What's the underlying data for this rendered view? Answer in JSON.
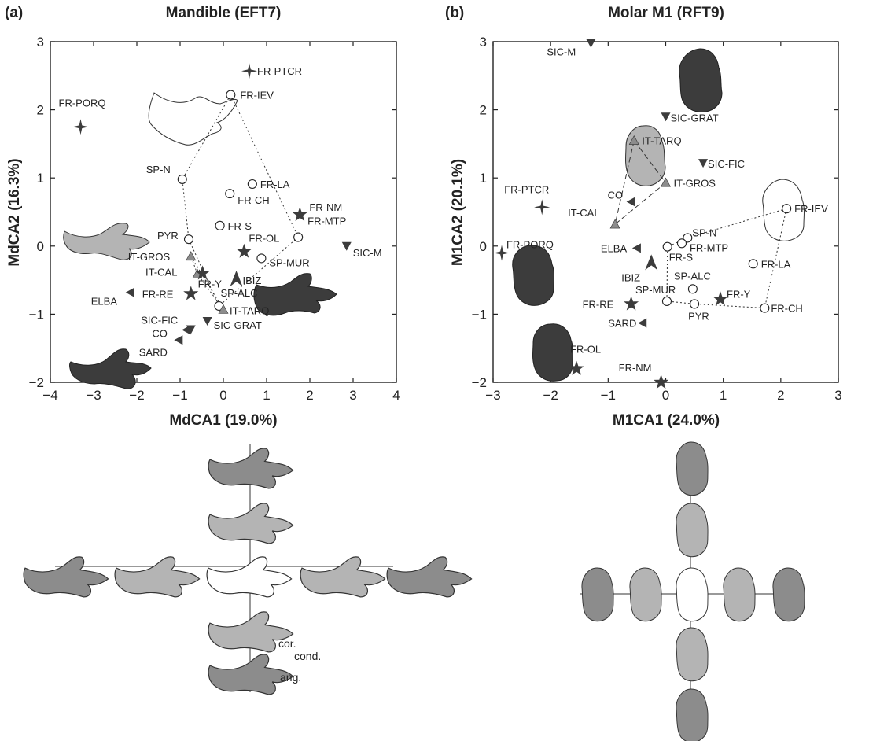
{
  "chart_data": [
    {
      "panel": "(a)",
      "type": "scatter",
      "title": "Mandible (EFT7)",
      "xlabel": "MdCA1 (19.0%)",
      "ylabel": "MdCA2 (16.3%)",
      "xlim": [
        -4,
        4
      ],
      "ylim": [
        -2,
        3
      ],
      "xticks": [
        "-4",
        "-3",
        "-2",
        "-1",
        "0",
        "1",
        "2",
        "3",
        "4"
      ],
      "yticks": [
        "-2",
        "-1",
        "0",
        "1",
        "2",
        "3"
      ],
      "points": [
        {
          "label": "FR-PTCR",
          "x": 0.6,
          "y": 2.57,
          "marker": "cross4"
        },
        {
          "label": "FR-PORQ",
          "x": -3.3,
          "y": 1.75,
          "marker": "cross4"
        },
        {
          "label": "FR-IEV",
          "x": 0.17,
          "y": 2.22,
          "marker": "circle"
        },
        {
          "label": "SP-N",
          "x": -0.95,
          "y": 0.98,
          "marker": "circle"
        },
        {
          "label": "FR-LA",
          "x": 0.67,
          "y": 0.91,
          "marker": "circle"
        },
        {
          "label": "FR-CH",
          "x": 0.15,
          "y": 0.77,
          "marker": "circle"
        },
        {
          "label": "FR-NM",
          "x": 1.77,
          "y": 0.46,
          "marker": "star"
        },
        {
          "label": "FR-S",
          "x": -0.08,
          "y": 0.3,
          "marker": "circle"
        },
        {
          "label": "FR-MTP",
          "x": 1.73,
          "y": 0.13,
          "marker": "circle"
        },
        {
          "label": "PYR",
          "x": -0.8,
          "y": 0.1,
          "marker": "circle"
        },
        {
          "label": "SIC-M",
          "x": 2.85,
          "y": 0.0,
          "marker": "tri-down"
        },
        {
          "label": "FR-OL",
          "x": 0.48,
          "y": -0.08,
          "marker": "star"
        },
        {
          "label": "SP-MUR",
          "x": 0.88,
          "y": -0.18,
          "marker": "circle"
        },
        {
          "label": "IT-GROS",
          "x": -0.75,
          "y": -0.15,
          "marker": "tri-up"
        },
        {
          "label": "IT-CAL",
          "x": -0.6,
          "y": -0.41,
          "marker": "tri-up"
        },
        {
          "label": "FR-Y",
          "x": -0.48,
          "y": -0.4,
          "marker": "star"
        },
        {
          "label": "IBIZ",
          "x": 0.3,
          "y": -0.5,
          "marker": "arrowhead"
        },
        {
          "label": "ELBA",
          "x": -2.15,
          "y": -0.68,
          "marker": "tri-left"
        },
        {
          "label": "FR-RE",
          "x": -0.75,
          "y": -0.7,
          "marker": "star"
        },
        {
          "label": "SP-ALC",
          "x": -0.1,
          "y": -0.88,
          "marker": "circle"
        },
        {
          "label": "IT-TARQ",
          "x": 0.0,
          "y": -0.93,
          "marker": "tri-up"
        },
        {
          "label": "SIC-FIC",
          "x": -0.85,
          "y": -1.23,
          "marker": "tri-left"
        },
        {
          "label": "CO",
          "x": -1.03,
          "y": -1.38,
          "marker": "tri-left"
        },
        {
          "label": "SIC-GRAT",
          "x": -0.37,
          "y": -1.1,
          "marker": "tri-down"
        },
        {
          "label": "SARD",
          "x": -0.75,
          "y": -1.22,
          "marker": "tri-down"
        }
      ],
      "hulls": [
        {
          "style": "dotted",
          "points": [
            "FR-IEV",
            "FR-MTP",
            "SP-ALC",
            "PYR",
            "SP-N"
          ]
        },
        {
          "style": "dotted",
          "points": [
            "IT-GROS",
            "IT-TARQ",
            "IT-CAL"
          ]
        }
      ]
    },
    {
      "panel": "(b)",
      "type": "scatter",
      "title": "Molar M1 (RFT9)",
      "xlabel": "M1CA1 (24.0%)",
      "ylabel": "M1CA2 (20.1%)",
      "xlim": [
        -3,
        3
      ],
      "ylim": [
        -2,
        3
      ],
      "xticks": [
        "-3",
        "-2",
        "-1",
        "0",
        "1",
        "2",
        "3"
      ],
      "yticks": [
        "-2",
        "-1",
        "0",
        "1",
        "2",
        "3"
      ],
      "points": [
        {
          "label": "SIC-M",
          "x": -1.3,
          "y": 2.98,
          "marker": "tri-down"
        },
        {
          "label": "SIC-GRAT",
          "x": 0.0,
          "y": 1.9,
          "marker": "tri-down"
        },
        {
          "label": "IT-TARQ",
          "x": -0.55,
          "y": 1.55,
          "marker": "tri-up"
        },
        {
          "label": "SIC-FIC",
          "x": 0.65,
          "y": 1.22,
          "marker": "tri-down"
        },
        {
          "label": "IT-GROS",
          "x": 0.0,
          "y": 0.93,
          "marker": "tri-up"
        },
        {
          "label": "CO",
          "x": -0.6,
          "y": 0.65,
          "marker": "tri-left"
        },
        {
          "label": "FR-PTCR",
          "x": -2.15,
          "y": 0.57,
          "marker": "cross4"
        },
        {
          "label": "FR-IEV",
          "x": 2.1,
          "y": 0.55,
          "marker": "circle"
        },
        {
          "label": "IT-CAL",
          "x": -0.88,
          "y": 0.32,
          "marker": "tri-up"
        },
        {
          "label": "SP-N",
          "x": 0.38,
          "y": 0.12,
          "marker": "circle"
        },
        {
          "label": "FR-MTP",
          "x": 0.28,
          "y": 0.04,
          "marker": "circle"
        },
        {
          "label": "ELBA",
          "x": -0.5,
          "y": -0.03,
          "marker": "tri-left"
        },
        {
          "label": "FR-S",
          "x": 0.03,
          "y": -0.01,
          "marker": "circle"
        },
        {
          "label": "FR-PORQ",
          "x": -2.85,
          "y": -0.1,
          "marker": "cross4"
        },
        {
          "label": "IBIZ",
          "x": -0.25,
          "y": -0.26,
          "marker": "arrowhead"
        },
        {
          "label": "FR-LA",
          "x": 1.52,
          "y": -0.26,
          "marker": "circle"
        },
        {
          "label": "SP-ALC",
          "x": 0.47,
          "y": -0.63,
          "marker": "circle"
        },
        {
          "label": "SP-MUR",
          "x": 0.02,
          "y": -0.81,
          "marker": "circle"
        },
        {
          "label": "FR-Y",
          "x": 0.95,
          "y": -0.78,
          "marker": "star"
        },
        {
          "label": "PYR",
          "x": 0.5,
          "y": -0.85,
          "marker": "circle"
        },
        {
          "label": "FR-RE",
          "x": -0.6,
          "y": -0.85,
          "marker": "star"
        },
        {
          "label": "FR-CH",
          "x": 1.72,
          "y": -0.91,
          "marker": "circle"
        },
        {
          "label": "SARD",
          "x": -0.4,
          "y": -1.13,
          "marker": "tri-left"
        },
        {
          "label": "FR-OL",
          "x": -1.55,
          "y": -1.8,
          "marker": "star"
        },
        {
          "label": "FR-NM",
          "x": -0.08,
          "y": -2.0,
          "marker": "star"
        }
      ],
      "hulls": [
        {
          "style": "dotted",
          "points": [
            "FR-IEV",
            "FR-CH",
            "PYR",
            "SP-MUR",
            "FR-S",
            "SP-N"
          ]
        },
        {
          "style": "dashed",
          "points": [
            "IT-TARQ",
            "IT-GROS",
            "IT-CAL"
          ]
        }
      ]
    }
  ],
  "panel_a_label": "(a)",
  "panel_b_label": "(b)",
  "mandible_annotations": {
    "cor": "cor.",
    "cond": "cond.",
    "ang": "ang."
  },
  "colors": {
    "dark": "#3c3c3c",
    "light": "#b4b4b4",
    "mid": "#8c8c8c",
    "white": "#ffffff"
  }
}
